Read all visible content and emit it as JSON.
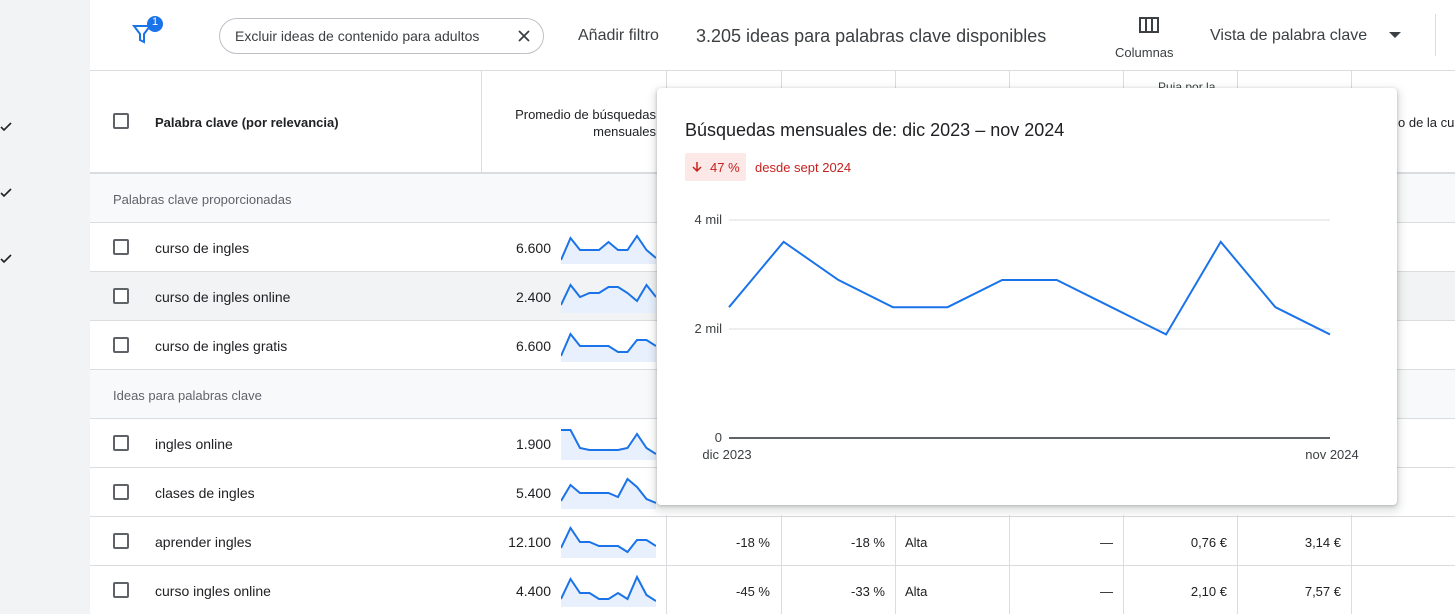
{
  "toolbar": {
    "filter_badge": "1",
    "chip": "Excluir ideas de contenido para adultos",
    "add_filter": "Añadir filtro",
    "ideas_count": "3.205 ideas para palabras clave disponibles",
    "columns": "Columnas",
    "view": "Vista de palabra clave"
  },
  "table": {
    "headers": [
      "Palabra clave (por relevancia)",
      "Promedio de búsquedas mensuales",
      "Puja por la",
      "o de la cu"
    ],
    "groups": [
      {
        "title": "Palabras clave proporcionadas",
        "rows": [
          {
            "keyword": "curso de ingles",
            "avg": "6.600"
          },
          {
            "keyword": "curso de ingles online",
            "avg": "2.400"
          },
          {
            "keyword": "curso de ingles gratis",
            "avg": "6.600"
          }
        ]
      },
      {
        "title": "Ideas para palabras clave",
        "rows": [
          {
            "keyword": "ingles online",
            "avg": "1.900"
          },
          {
            "keyword": "clases de ingles",
            "avg": "5.400"
          },
          {
            "keyword": "aprender ingles",
            "avg": "12.100",
            "cells": [
              "-18 %",
              "-18 %",
              "Alta",
              "—",
              "0,76 €",
              "3,14 €"
            ]
          },
          {
            "keyword": "curso ingles online",
            "avg": "4.400",
            "cells": [
              "-45 %",
              "-33 %",
              "Alta",
              "—",
              "2,10 €",
              "7,57 €"
            ]
          }
        ]
      }
    ]
  },
  "popup": {
    "title": "Búsquedas mensuales de: dic 2023 – nov 2024",
    "change": "47 %",
    "since": "desde sept 2024",
    "chart": {
      "type": "line",
      "color": "#1a73e8",
      "categories": [
        "dic 2023",
        null,
        null,
        null,
        null,
        null,
        null,
        null,
        null,
        null,
        null,
        "nov 2024"
      ],
      "values": [
        2400,
        3600,
        2900,
        2400,
        2400,
        2900,
        2900,
        2400,
        1900,
        3600,
        2400,
        1900
      ],
      "ylim": [
        0,
        4000
      ],
      "yticks": [
        0,
        {
          "value": 2000,
          "label": "2 mil"
        },
        {
          "value": 4000,
          "label": "4 mil"
        }
      ],
      "grid": true
    }
  }
}
